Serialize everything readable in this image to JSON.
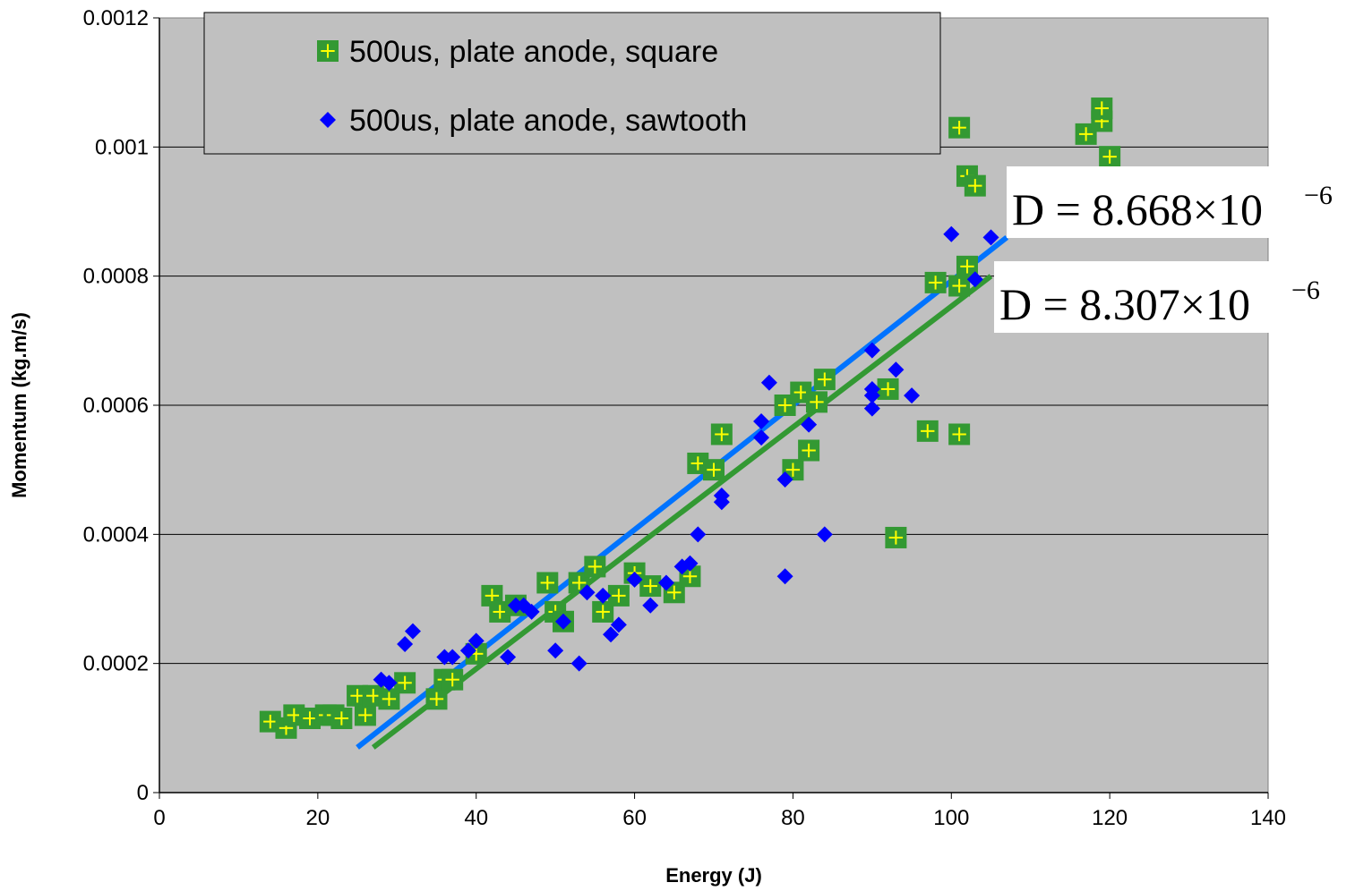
{
  "chart_data": {
    "type": "scatter",
    "xlabel": "Energy (J)",
    "ylabel": "Momentum (kg.m/s)",
    "xlim": [
      0,
      140
    ],
    "ylim": [
      0,
      0.0012
    ],
    "x_ticks": [
      "0",
      "20",
      "40",
      "60",
      "80",
      "100",
      "120",
      "140"
    ],
    "y_ticks": [
      "0",
      "0.0002",
      "0.0004",
      "0.0006",
      "0.0008",
      "0.001",
      "0.0012"
    ],
    "grid": "horizontal",
    "legend_position": "top-left",
    "plot_background": "#c0c0c0",
    "series": [
      {
        "name": "500us, plate anode, square",
        "marker": "square-plus",
        "color": "#339933",
        "cross_color": "#ffff00",
        "points": [
          [
            14,
            0.00011
          ],
          [
            16,
            0.0001
          ],
          [
            17,
            0.00012
          ],
          [
            19,
            0.000115
          ],
          [
            21,
            0.00012
          ],
          [
            22,
            0.00012
          ],
          [
            23,
            0.000115
          ],
          [
            25,
            0.00015
          ],
          [
            26,
            0.00012
          ],
          [
            27,
            0.00015
          ],
          [
            29,
            0.000145
          ],
          [
            31,
            0.00017
          ],
          [
            35,
            0.000145
          ],
          [
            36,
            0.000175
          ],
          [
            37,
            0.000175
          ],
          [
            40,
            0.000215
          ],
          [
            42,
            0.000305
          ],
          [
            43,
            0.00028
          ],
          [
            45,
            0.00029
          ],
          [
            49,
            0.000325
          ],
          [
            50,
            0.00028
          ],
          [
            51,
            0.000265
          ],
          [
            53,
            0.000325
          ],
          [
            55,
            0.00035
          ],
          [
            56,
            0.00028
          ],
          [
            58,
            0.000305
          ],
          [
            60,
            0.00034
          ],
          [
            62,
            0.00032
          ],
          [
            65,
            0.00031
          ],
          [
            67,
            0.000335
          ],
          [
            68,
            0.00051
          ],
          [
            70,
            0.0005
          ],
          [
            71,
            0.000555
          ],
          [
            79,
            0.0006
          ],
          [
            80,
            0.0005
          ],
          [
            81,
            0.00062
          ],
          [
            82,
            0.00053
          ],
          [
            83,
            0.000605
          ],
          [
            84,
            0.00064
          ],
          [
            92,
            0.000625
          ],
          [
            93,
            0.000395
          ],
          [
            97,
            0.00056
          ],
          [
            98,
            0.00079
          ],
          [
            101,
            0.000555
          ],
          [
            101,
            0.00103
          ],
          [
            101,
            0.000785
          ],
          [
            102,
            0.000815
          ],
          [
            102,
            0.000955
          ],
          [
            103,
            0.00094
          ],
          [
            117,
            0.00102
          ],
          [
            119,
            0.00104
          ],
          [
            119,
            0.00106
          ],
          [
            120,
            0.000985
          ]
        ]
      },
      {
        "name": "500us, plate anode, sawtooth",
        "marker": "diamond",
        "color": "#0000ff",
        "points": [
          [
            28,
            0.000175
          ],
          [
            29,
            0.00017
          ],
          [
            31,
            0.00023
          ],
          [
            32,
            0.00025
          ],
          [
            36,
            0.00021
          ],
          [
            37,
            0.00021
          ],
          [
            39,
            0.00022
          ],
          [
            40,
            0.000235
          ],
          [
            44,
            0.00021
          ],
          [
            45,
            0.00029
          ],
          [
            46,
            0.00029
          ],
          [
            47,
            0.00028
          ],
          [
            50,
            0.00022
          ],
          [
            51,
            0.000265
          ],
          [
            53,
            0.0002
          ],
          [
            54,
            0.00031
          ],
          [
            56,
            0.000305
          ],
          [
            57,
            0.000245
          ],
          [
            58,
            0.00026
          ],
          [
            60,
            0.00033
          ],
          [
            62,
            0.00029
          ],
          [
            64,
            0.000325
          ],
          [
            66,
            0.00035
          ],
          [
            67,
            0.000355
          ],
          [
            68,
            0.0004
          ],
          [
            71,
            0.00046
          ],
          [
            71,
            0.00045
          ],
          [
            76,
            0.000575
          ],
          [
            76,
            0.00055
          ],
          [
            77,
            0.000635
          ],
          [
            79,
            0.000485
          ],
          [
            79,
            0.000335
          ],
          [
            82,
            0.00057
          ],
          [
            84,
            0.0004
          ],
          [
            90,
            0.000595
          ],
          [
            90,
            0.000615
          ],
          [
            90,
            0.000625
          ],
          [
            90,
            0.000685
          ],
          [
            93,
            0.000655
          ],
          [
            95,
            0.000615
          ],
          [
            100,
            0.000865
          ],
          [
            103,
            0.000795
          ],
          [
            105,
            0.00086
          ]
        ]
      }
    ],
    "fit_lines": [
      {
        "color": "#0073ff",
        "from": [
          25,
          7e-05
        ],
        "to": [
          107,
          0.00086
        ]
      },
      {
        "color": "#339933",
        "from": [
          27,
          7e-05
        ],
        "to": [
          105,
          0.0008
        ]
      }
    ],
    "annotations": [
      {
        "prefix": "D = 8.668×10",
        "exponent": "−6"
      },
      {
        "prefix": "D = 8.307×10",
        "exponent": "−6"
      }
    ]
  }
}
